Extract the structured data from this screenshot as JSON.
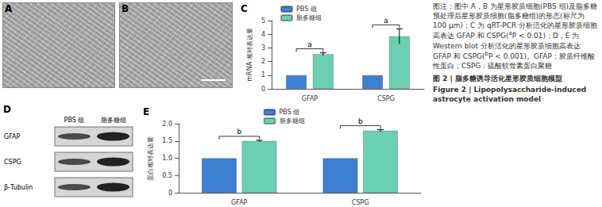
{
  "images": [
    {
      "panel": "A"
    },
    {
      "panel": "B"
    }
  ],
  "blot": {
    "panel": "D",
    "columns": [
      "PBS 组",
      "脂多糖组"
    ],
    "rows": [
      "GFAP",
      "CSPG",
      "β-Tubulin"
    ]
  },
  "chart_data": [
    {
      "panel": "C",
      "type": "bar",
      "ylabel": "mRNA 相对表达量",
      "categories": [
        "GFAP",
        "CSPG"
      ],
      "series": [
        {
          "name": "PBS 组",
          "color": "#3f7fcf",
          "values": [
            1.0,
            1.0
          ],
          "errors": [
            0,
            0
          ]
        },
        {
          "name": "脂多糖组",
          "color": "#6ccfb2",
          "values": [
            2.55,
            3.85
          ],
          "errors": [
            0.1,
            0.55
          ]
        }
      ],
      "annotations": [
        {
          "text": "a",
          "category": "GFAP"
        },
        {
          "text": "a",
          "category": "CSPG"
        }
      ],
      "ylim": [
        0,
        5
      ],
      "yticks": [
        0,
        1,
        2,
        3,
        4,
        5
      ],
      "grid": false,
      "legend": "top-left"
    },
    {
      "panel": "E",
      "type": "bar",
      "ylabel": "蛋白相对表达量",
      "categories": [
        "GFAP",
        "CSPG"
      ],
      "series": [
        {
          "name": "PBS 组",
          "color": "#3f7fcf",
          "values": [
            1.0,
            1.0
          ],
          "errors": [
            0,
            0
          ]
        },
        {
          "name": "脂多糖组",
          "color": "#6ccfb2",
          "values": [
            1.5,
            1.8
          ],
          "errors": [
            0.02,
            0.03
          ]
        }
      ],
      "annotations": [
        {
          "text": "b",
          "category": "GFAP"
        },
        {
          "text": "b",
          "category": "CSPG"
        }
      ],
      "ylim": [
        0,
        2
      ],
      "yticks": [
        0,
        0.5,
        {
          "value": 1,
          "label": "1.0"
        },
        1.5,
        {
          "value": 2,
          "label": "2.0"
        }
      ],
      "grid": false,
      "legend": "top"
    }
  ],
  "caption": {
    "note": [
      {
        "text": "图注：图中 A，B 为星形胶质细胞(PBS 组)及脂多糖预处理后星形胶质细胞(脂多糖组)的形态(标尺为 100 μm)；C 为 qRT-PCR 分析活化的星形胶质细胞高表达 GFAP 和 CSPG("
      },
      {
        "sup": "a"
      },
      {
        "text": "P < 0.01)；D，E 为 Western blot 分析活化的星形胶质细胞高表达 GFAP 和 CSPG("
      },
      {
        "sup": "b"
      },
      {
        "text": "P < 0.001)。GFAP：胶质纤维酸性蛋白；CSPG：硫酸软骨素蛋白聚糖"
      }
    ],
    "title_zh": "图 2 | 脂多糖诱导活化星形胶质细胞模型",
    "title_en": "Figure 2 | Lipopolysaccharide-induced astrocyte activation model"
  }
}
